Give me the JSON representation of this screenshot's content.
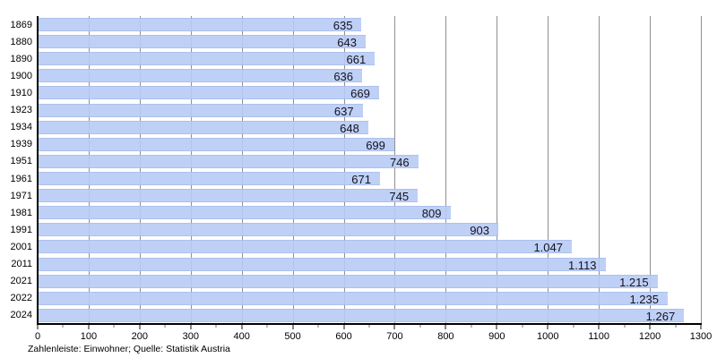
{
  "chart_data": {
    "type": "bar",
    "orientation": "horizontal",
    "title": "",
    "categories": [
      "1869",
      "1880",
      "1890",
      "1900",
      "1910",
      "1923",
      "1934",
      "1939",
      "1951",
      "1961",
      "1971",
      "1981",
      "1991",
      "2001",
      "2011",
      "2021",
      "2022",
      "2024"
    ],
    "values": [
      635,
      643,
      661,
      636,
      669,
      637,
      648,
      699,
      746,
      671,
      745,
      809,
      903,
      1047,
      1113,
      1215,
      1235,
      1267
    ],
    "value_labels": [
      "635",
      "643",
      "661",
      "636",
      "669",
      "637",
      "648",
      "699",
      "746",
      "671",
      "745",
      "809",
      "903",
      "1.047",
      "1.113",
      "1.215",
      "1.235",
      "1.267"
    ],
    "xlabel": "",
    "ylabel": "",
    "xlim": [
      0,
      1300
    ],
    "x_tick_labels": [
      "0",
      "100",
      "200",
      "300",
      "400",
      "500",
      "600",
      "700",
      "800",
      "900",
      "1000",
      "1100",
      "1200",
      "1300"
    ],
    "x_major_tick_step": 100,
    "x_minor_tick_step": 50,
    "grid": true,
    "legend_position": "none",
    "caption": "Zahlenleiste: Einwohner; Quelle: Statistik Austria",
    "colors": {
      "bar_fill": "#b8cbf6",
      "bar_border": "#a2b6e6",
      "gridline": "#909090",
      "axis": "#000000",
      "value_text": "#12121c",
      "label_text": "#000000",
      "background": "#ffffff"
    }
  }
}
